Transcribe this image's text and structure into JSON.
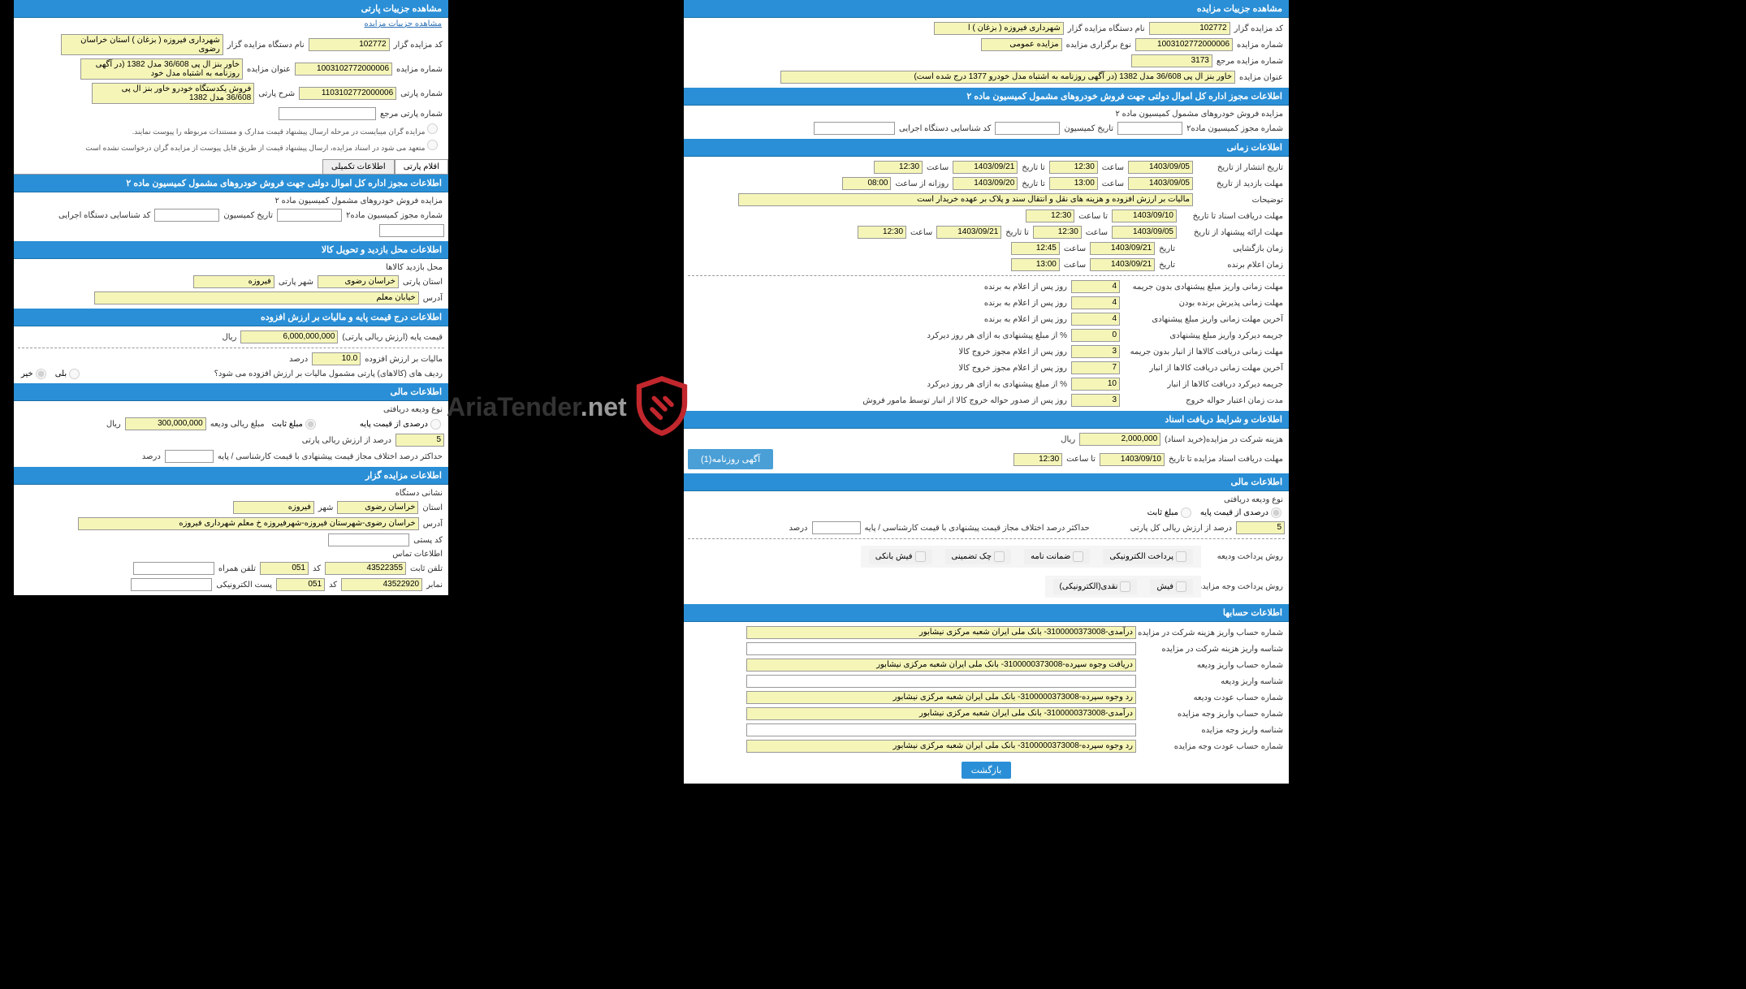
{
  "right": {
    "h1": "مشاهده جزییات مزایده",
    "r1": [
      {
        "l": "کد مزایده گزار",
        "v": "102772"
      },
      {
        "l": "نام دستگاه مزایده گزار",
        "v": "شهرداری فیروزه ( بزغان ) ا"
      }
    ],
    "r2": [
      {
        "l": "شماره مزایده",
        "v": "1003102772000006"
      },
      {
        "l": "نوع برگزاری مزایده",
        "v": "مزایده عمومی"
      }
    ],
    "r3": [
      {
        "l": "شماره مزایده مرجع",
        "v": "3173"
      }
    ],
    "r4": [
      {
        "l": "عنوان مزایده",
        "v": "خاور بنز ال پی 36/608 مدل 1382 (در آگهی روزنامه به اشتباه مدل خودرو 1377 درج شده است)"
      }
    ],
    "h2": "اطلاعات مجوز اداره کل اموال دولتی جهت فروش خودروهای مشمول کمیسیون ماده ۲",
    "t2": "مزایده فروش خودروهای مشمول کمیسیون ماده ۲",
    "r5": [
      {
        "l": "شماره مجوز کمیسیون ماده۲",
        "v": ""
      },
      {
        "l": "تاریخ کمیسیون",
        "v": ""
      },
      {
        "l": "کد شناسایی دستگاه اجرایی",
        "v": ""
      }
    ],
    "h3": "اطلاعات زمانی",
    "time": [
      {
        "l1": "تاریخ انتشار از تاریخ",
        "d1": "1403/09/05",
        "l2": "ساعت",
        "t1": "12:30",
        "l3": "تا تاریخ",
        "d2": "1403/09/21",
        "l4": "ساعت",
        "t2": "12:30"
      },
      {
        "l1": "مهلت بازدید از تاریخ",
        "d1": "1403/09/05",
        "l2": "ساعت",
        "t1": "13:00",
        "l3": "تا تاریخ",
        "d2": "1403/09/20",
        "l4": "روزانه از ساعت",
        "t2": "08:00"
      }
    ],
    "desc": {
      "l": "توضیحات",
      "v": "مالیات بر ارزش افزوده و هزینه های نقل و انتقال سند و پلاک بر عهده خریدار است"
    },
    "time2": [
      {
        "l1": "مهلت دریافت اسناد تا تاریخ",
        "d1": "1403/09/10",
        "l2": "تا ساعت",
        "t1": "12:30"
      },
      {
        "l1": "مهلت ارائه پیشنهاد از تاریخ",
        "d1": "1403/09/05",
        "l2": "ساعت",
        "t1": "12:30",
        "l3": "تا تاریخ",
        "d2": "1403/09/21",
        "l4": "ساعت",
        "t2": "12:30"
      },
      {
        "l1": "زمان بازگشایی",
        "x": "تاریخ",
        "d1": "1403/09/21",
        "l2": "ساعت",
        "t1": "12:45"
      },
      {
        "l1": "زمان اعلام برنده",
        "x": "تاریخ",
        "d1": "1403/09/21",
        "l2": "ساعت",
        "t1": "13:00"
      }
    ],
    "limits": [
      {
        "l": "مهلت زمانی واریز مبلغ پیشنهادی بدون جریمه",
        "v": "4",
        "u": "روز پس از اعلام به برنده"
      },
      {
        "l": "مهلت زمانی پذیرش برنده بودن",
        "v": "4",
        "u": "روز پس از اعلام به برنده"
      },
      {
        "l": "آخرین مهلت زمانی واریز مبلغ پیشنهادی",
        "v": "4",
        "u": "روز پس از اعلام به برنده"
      },
      {
        "l": "جریمه دیرکرد واریز مبلغ پیشنهادی",
        "v": "0",
        "u": "% از مبلغ پیشنهادی به ازای هر روز دیرکرد"
      },
      {
        "l": "مهلت زمانی دریافت کالاها از انبار بدون جریمه",
        "v": "3",
        "u": "روز پس از اعلام مجوز خروج کالا"
      },
      {
        "l": "آخرین مهلت زمانی دریافت کالاها از انبار",
        "v": "7",
        "u": "روز پس از اعلام مجوز خروج کالا"
      },
      {
        "l": "جریمه دیرکرد دریافت کالاها از انبار",
        "v": "10",
        "u": "% از مبلغ پیشنهادی به ازای هر روز دیرکرد"
      },
      {
        "l": "مدت زمان اعتبار حواله خروج",
        "v": "3",
        "u": "روز پس از صدور حواله خروج کالا از انبار توسط مامور فروش"
      }
    ],
    "h4": "اطلاعات و شرایط دریافت اسناد",
    "fee": {
      "l": "هزینه شرکت در مزایده(خرید اسناد)",
      "v": "2,000,000",
      "u": "ریال"
    },
    "deadline": {
      "l": "مهلت دریافت اسناد مزایده تا تاریخ",
      "d": "1403/09/10",
      "l2": "تا ساعت",
      "t": "12:30"
    },
    "adBtn": "آگهی روزنامه(1)",
    "h5": "اطلاعات مالی",
    "depositType": "نوع ودیعه دریافتی",
    "depositOpts": [
      "درصدی از قیمت پایه",
      "مبلغ ثابت"
    ],
    "pct": {
      "v": "5",
      "l": "درصد از ارزش ریالی کل پارتی",
      "l2": "حداکثر درصد اختلاف مجاز قیمت پیشنهادی با قیمت کارشناسی / پایه",
      "u": "درصد"
    },
    "payMethod": "روش پرداخت ودیعه",
    "payOpts": [
      "پرداخت الکترونیکی",
      "ضمانت نامه",
      "چک تضمینی",
      "فیش بانکی"
    ],
    "payMethod2": "روش پرداخت وجه مزایده",
    "payOpts2": [
      "فیش",
      "نقدی(الکترونیکی)"
    ],
    "h6": "اطلاعات حسابها",
    "accounts": [
      {
        "l": "شماره حساب واریز هزینه شرکت در مزایده",
        "v": "درآمدی-3100000373008- بانک ملی ایران شعبه مرکزی نیشابور"
      },
      {
        "l": "شناسه واریز هزینه شرکت در مزایده",
        "v": ""
      },
      {
        "l": "شماره حساب واریز ودیعه",
        "v": "دریافت وجوه سپرده-3100000373008- بانک ملی ایران شعبه مرکزی نیشابور"
      },
      {
        "l": "شناسه واریز ودیعه",
        "v": ""
      },
      {
        "l": "شماره حساب عودت ودیعه",
        "v": "رد وجوه سپرده-3100000373008- بانک ملی ایران شعبه مرکزی نیشابور"
      },
      {
        "l": "شماره حساب واریز وجه مزایده",
        "v": "درآمدی-3100000373008- بانک ملی ایران شعبه مرکزی نیشابور"
      },
      {
        "l": "شناسه واریز وجه مزایده",
        "v": ""
      },
      {
        "l": "شماره حساب عودت وجه مزایده",
        "v": "رد وجوه سپرده-3100000373008- بانک ملی ایران شعبه مرکزی نیشابور"
      }
    ],
    "backBtn": "بازگشت"
  },
  "left": {
    "h1": "مشاهده جزییات پارتی",
    "link": "مشاهده جزییات مزایده",
    "r1": [
      {
        "l": "کد مزایده گزار",
        "v": "102772"
      },
      {
        "l": "نام دستگاه مزایده گزار",
        "v": "شهرداری فیروزه ( بزغان ) استان خراسان رضوی"
      }
    ],
    "r2": [
      {
        "l": "شماره مزایده",
        "v": "1003102772000006"
      },
      {
        "l": "عنوان مزایده",
        "v": "خاور بنز ال پی 36/608 مدل 1382 (در آگهی روزنامه به اشتباه مدل خود"
      }
    ],
    "r3": [
      {
        "l": "شماره پارتی",
        "v": "1103102772000006"
      },
      {
        "l": "شرح پارتی",
        "v": "فروش یکدستگاه خودرو خاور بنز ال پی 36/608 مدل 1382"
      }
    ],
    "r4": [
      {
        "l": "شماره پارتی مرجع",
        "v": ""
      }
    ],
    "note1": "مزایده گران میبایست در مرحله ارسال پیشنهاد قیمت مدارک و مستندات مربوطه را پیوست نمایند.",
    "note2": "متعهد می شود در اسناد مزایده، ارسال پیشنهاد قیمت از طریق فایل پیوست از مزایده گران درخواست نشده است",
    "tabs": [
      "اقلام پارتی",
      "اطلاعات تکمیلی"
    ],
    "h2": "اطلاعات مجوز اداره کل اموال دولتی جهت فروش خودروهای مشمول کمیسیون ماده ۲",
    "t2": "مزایده فروش خودروهای مشمول کمیسیون ماده ۲",
    "r5": [
      {
        "l": "شماره مجوز کمیسیون ماده۲",
        "v": ""
      },
      {
        "l": "تاریخ کمیسیون",
        "v": ""
      },
      {
        "l": "کد شناسایی دستگاه اجرایی",
        "v": ""
      }
    ],
    "h3": "اطلاعات محل بازدید و تحویل کالا",
    "loc1": "محل بازدید کالاها",
    "loc": [
      {
        "l": "استان پارتی",
        "v": "خراسان رضوی"
      },
      {
        "l": "شهر پارتی",
        "v": "فیروزه"
      }
    ],
    "addr": {
      "l": "آدرس",
      "v": "خیابان معلم"
    },
    "h4": "اطلاعات درج قیمت پایه و مالیات بر ارزش افزوده",
    "price": {
      "l": "قیمت پایه (ارزش ریالی پارتی)",
      "v": "6,000,000,000",
      "u": "ریال"
    },
    "tax": {
      "l": "مالیات بر ارزش افزوده",
      "v": "10.0",
      "u": "درصد"
    },
    "q": "ردیف های (کالاهای) پارتی مشمول مالیات بر ارزش افزوده می شود؟",
    "yesno": [
      "بلی",
      "خیر"
    ],
    "h5": "اطلاعات مالی",
    "depType": "نوع ودیعه دریافتی",
    "depOpts": [
      "درصدی از قیمت پایه",
      "مبلغ ثابت"
    ],
    "depAmt": {
      "l": "مبلغ ریالی ودیعه",
      "v": "300,000,000",
      "u": "ریال"
    },
    "pct": {
      "v": "5",
      "l": "درصد از ارزش ریالی پارتی",
      "l2": "حداکثر درصد اختلاف مجاز قیمت پیشنهادی با قیمت کارشناسی / پایه",
      "u": "درصد"
    },
    "h6": "اطلاعات مزایده گزار",
    "addr2": {
      "l": "نشانی دستگاه",
      "v": ""
    },
    "loc2": [
      {
        "l": "استان",
        "v": "خراسان رضوی"
      },
      {
        "l": "شهر",
        "v": "فیروزه"
      }
    ],
    "addr3": {
      "l": "آدرس",
      "v": "خراسان رضوی-شهرستان فیروزه-شهرفیروزه خ معلم  شهرداری فیروزه"
    },
    "post": {
      "l": "کد پستی",
      "v": ""
    },
    "contact": "اطلاعات تماس",
    "tel": {
      "l": "تلفن ثابت",
      "v": "43522355",
      "cl": "کد",
      "cv": "051",
      "l2": "تلفن همراه",
      "v2": ""
    },
    "fax": {
      "l": "نمابر",
      "v": "43522920",
      "cl": "کد",
      "cv": "051",
      "l2": "پست الکترونیکی",
      "v2": ""
    }
  },
  "wm": {
    "t1": "AriaTender",
    "t2": ".net"
  }
}
